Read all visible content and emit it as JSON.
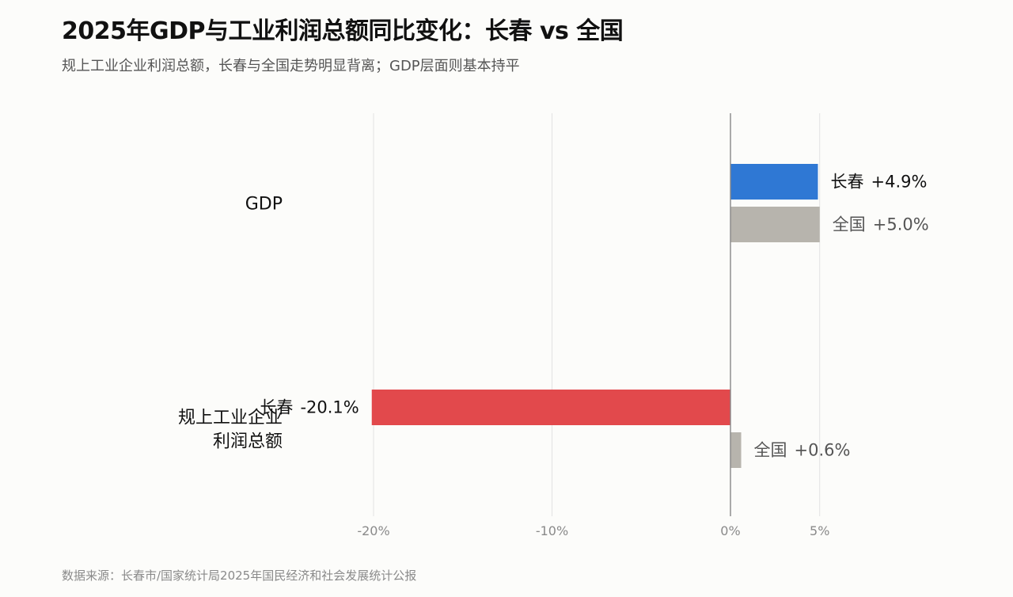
{
  "title": "2025年GDP与工业利润总额同比变化：长春 vs 全国",
  "subtitle": "规上工业企业利润总额，长春与全国走势明显背离；GDP层面则基本持平",
  "source": "数据来源：长春市/国家统计局2025年国民经济和社会发展统计公报",
  "colors": {
    "changchun_positive": "#2f78d4",
    "changchun_negative": "#e2494c",
    "national": "#b7b4ad",
    "grid": "#e2e2e2",
    "zero_line": "#888888"
  },
  "chart_data": {
    "type": "bar",
    "orientation": "horizontal",
    "categories": [
      "GDP",
      "规上工业企业利润总额"
    ],
    "category_lines": [
      [
        "GDP"
      ],
      [
        "规上工业企业",
        "利润总额"
      ]
    ],
    "series": [
      {
        "name": "长春",
        "values": [
          4.9,
          -20.1
        ],
        "labels": [
          "+4.9%",
          "-20.1%"
        ]
      },
      {
        "name": "全国",
        "values": [
          5.0,
          0.6
        ],
        "labels": [
          "+5.0%",
          "+0.6%"
        ]
      }
    ],
    "xlim": [
      -20,
      5
    ],
    "xticks": [
      -20,
      -10,
      0,
      5
    ],
    "xtick_labels": [
      "-20%",
      "-10%",
      "0%",
      "5%"
    ],
    "grid": true,
    "legend": "none"
  }
}
